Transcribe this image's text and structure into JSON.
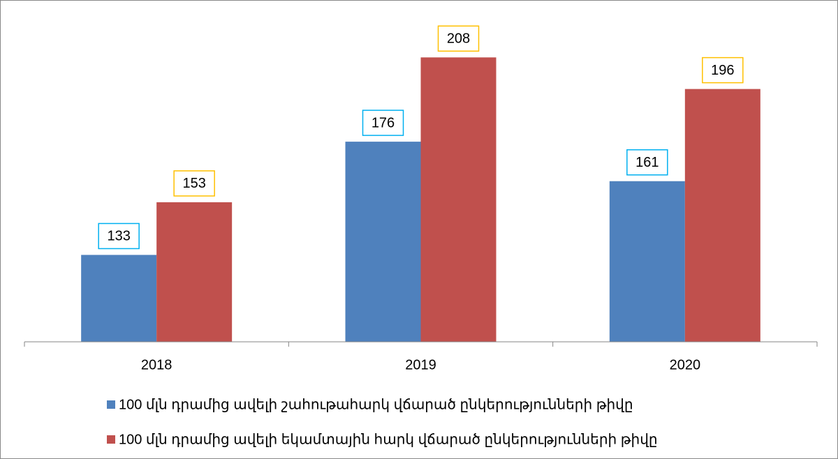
{
  "chart_data": {
    "type": "bar",
    "categories": [
      "2018",
      "2019",
      "2020"
    ],
    "series": [
      {
        "name": "100 մլն դրամից ավելի շահութահարկ վճարած ընկերությունների թիվը",
        "color": "#4f81bd",
        "label_border": "#00b0f0",
        "values": [
          133,
          176,
          161
        ]
      },
      {
        "name": "100 մլն դրամից ավելի եկամտային հարկ վճարած ընկերությունների թիվը",
        "color": "#c0504d",
        "label_border": "#ffc000",
        "values": [
          153,
          208,
          196
        ]
      }
    ],
    "ylim": [
      100,
      220
    ]
  }
}
